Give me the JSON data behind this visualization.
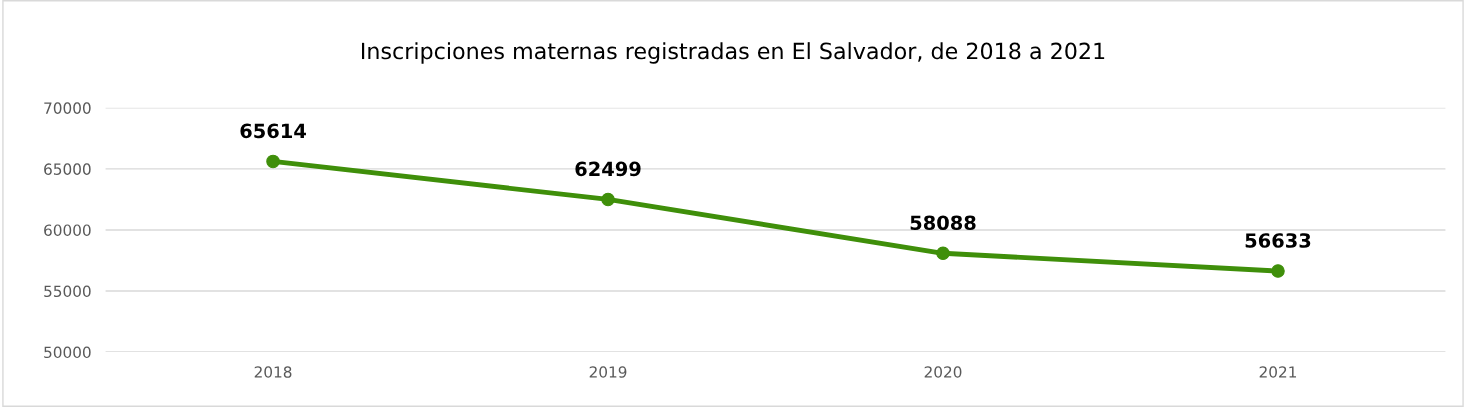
{
  "chart_data": {
    "type": "line",
    "title": "Inscripciones maternas registradas en El Salvador, de 2018 a 2021",
    "categories": [
      "2018",
      "2019",
      "2020",
      "2021"
    ],
    "series": [
      {
        "color": "#3f8f0a",
        "values": [
          65614,
          62499,
          58088,
          56633
        ]
      }
    ],
    "ylim": [
      50000,
      70000
    ],
    "yticks": [
      50000,
      55000,
      60000,
      65000,
      70000
    ],
    "grid": "y",
    "marker": "circle",
    "line_style": "solid",
    "data_labels": true
  }
}
